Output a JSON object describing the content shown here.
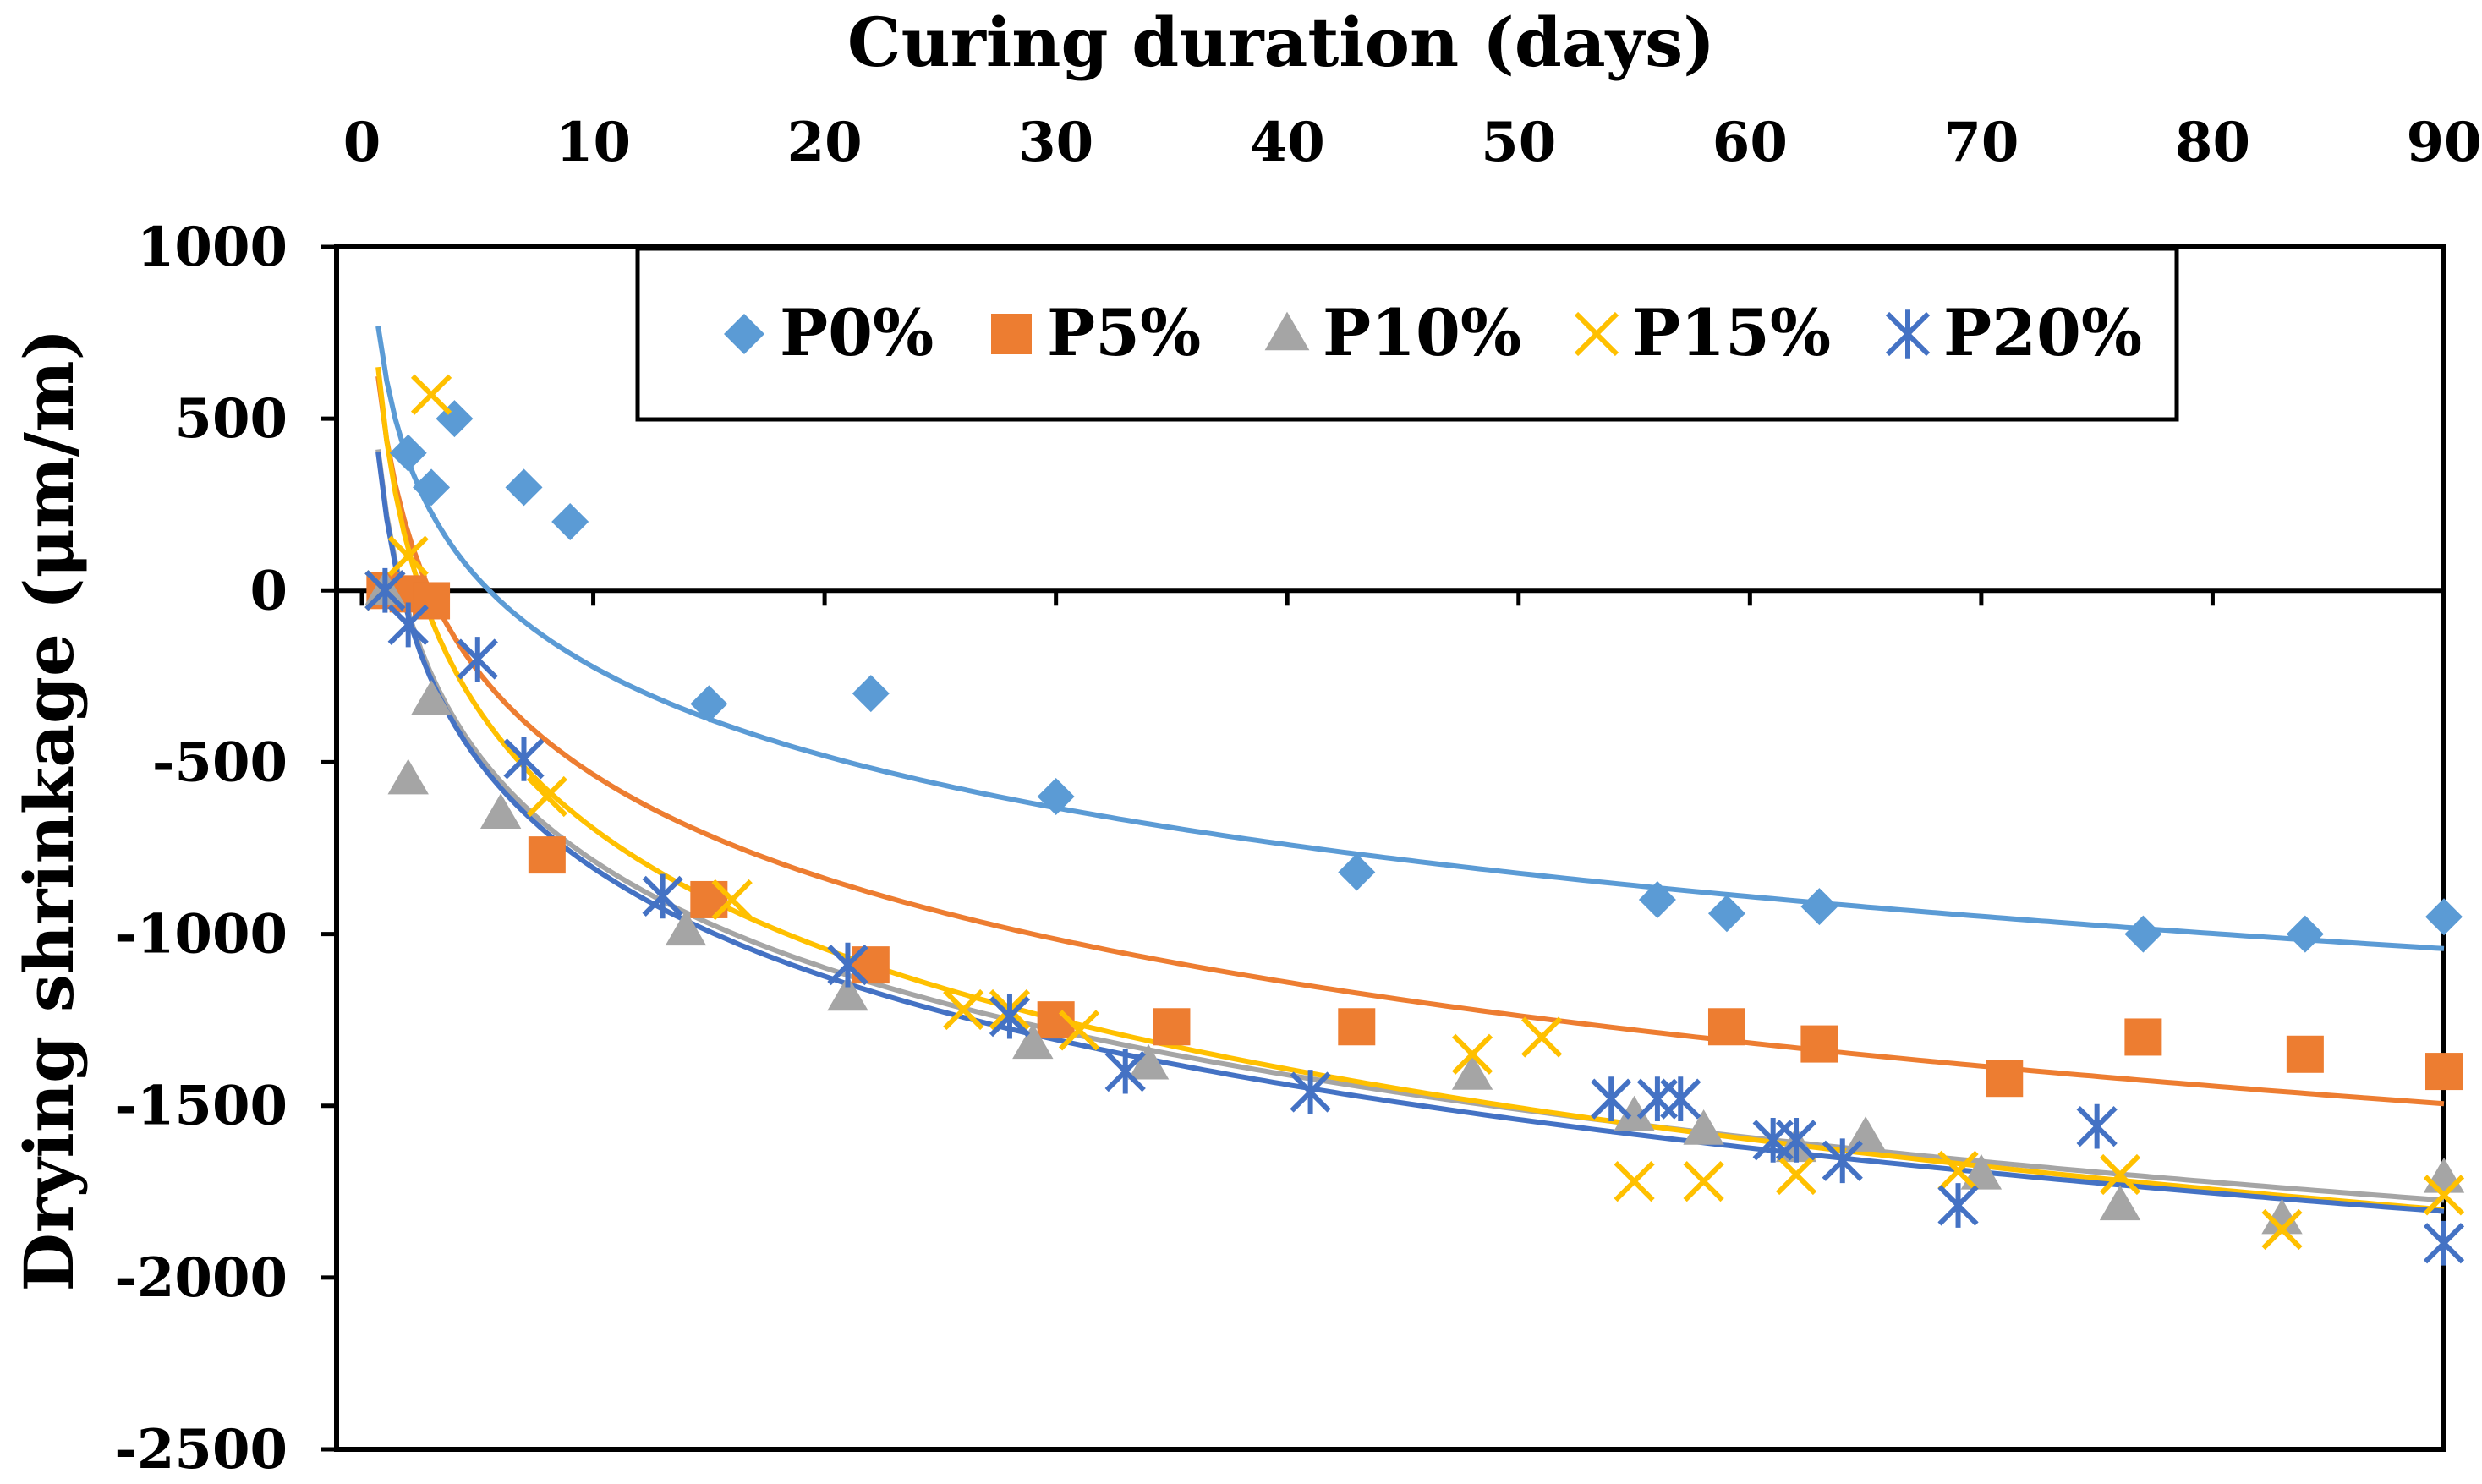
{
  "chart_data": {
    "type": "scatter",
    "title": "",
    "xlabel": "Curing duration (days)",
    "ylabel": "Drying shrinkage (μm/m)",
    "xlim": [
      0,
      90
    ],
    "ylim": [
      -2500,
      1000
    ],
    "xticks": [
      "0",
      "10",
      "20",
      "30",
      "40",
      "50",
      "60",
      "70",
      "80",
      "90"
    ],
    "yticks": [
      "1000",
      "500",
      "0",
      "-500",
      "-1000",
      "-1500",
      "-2000",
      "-2500"
    ],
    "x_axis_position": "top",
    "legend_position": "top-center",
    "grid": false,
    "series": [
      {
        "name": "P0%",
        "color": "#5B9BD5",
        "marker": "diamond",
        "x": [
          1,
          2,
          3,
          4,
          7,
          9,
          15,
          22,
          30,
          43,
          56,
          59,
          63,
          77,
          84,
          90
        ],
        "y": [
          0,
          400,
          300,
          500,
          300,
          200,
          -330,
          -300,
          -600,
          -820,
          -900,
          -940,
          -920,
          -1000,
          -1000,
          -950
        ],
        "trend": {
          "a": -373,
          "b": 636,
          "xmin": 0.7
        }
      },
      {
        "name": "P5%",
        "color": "#ED7D31",
        "marker": "square",
        "x": [
          1,
          2,
          3,
          8,
          15,
          22,
          30,
          35,
          43,
          59,
          63,
          71,
          77,
          84,
          90
        ],
        "y": [
          0,
          -10,
          -30,
          -770,
          -900,
          -1090,
          -1250,
          -1270,
          -1270,
          -1270,
          -1320,
          -1420,
          -1300,
          -1350,
          -1400
        ],
        "trend": {
          "a": -436,
          "b": 468,
          "xmin": 0.7
        }
      },
      {
        "name": "P10%",
        "color": "#A5A5A5",
        "marker": "triangle",
        "x": [
          1,
          2,
          3,
          6,
          14,
          21,
          29,
          34,
          48,
          55,
          58,
          62,
          65,
          70,
          76,
          83,
          90
        ],
        "y": [
          0,
          -550,
          -320,
          -650,
          -990,
          -1180,
          -1320,
          -1380,
          -1410,
          -1530,
          -1570,
          -1620,
          -1590,
          -1700,
          -1790,
          -1830,
          -1710
        ],
        "trend": {
          "a": -450,
          "b": 250,
          "xmin": 0.7
        }
      },
      {
        "name": "P15%",
        "color": "#FFC000",
        "marker": "x",
        "x": [
          1,
          2,
          3,
          8,
          16,
          26,
          28,
          31,
          48,
          51,
          55,
          58,
          62,
          69,
          76,
          83,
          90
        ],
        "y": [
          0,
          100,
          570,
          -600,
          -900,
          -1220,
          -1220,
          -1280,
          -1350,
          -1300,
          -1720,
          -1720,
          -1700,
          -1690,
          -1700,
          -1860,
          -1760
        ],
        "trend": {
          "a": -505,
          "b": 470,
          "xmin": 0.7
        }
      },
      {
        "name": "P20%",
        "color": "#4472C4",
        "marker": "asterisk",
        "x": [
          1,
          2,
          5,
          7,
          13,
          21,
          28,
          33,
          41,
          54,
          56,
          57,
          61,
          62,
          64,
          69,
          75,
          90
        ],
        "y": [
          0,
          -100,
          -200,
          -490,
          -890,
          -1090,
          -1240,
          -1400,
          -1460,
          -1480,
          -1480,
          -1480,
          -1600,
          -1600,
          -1660,
          -1790,
          -1560,
          -1900
        ],
        "trend": {
          "a": -455,
          "b": 240,
          "xmin": 0.7
        }
      }
    ]
  }
}
